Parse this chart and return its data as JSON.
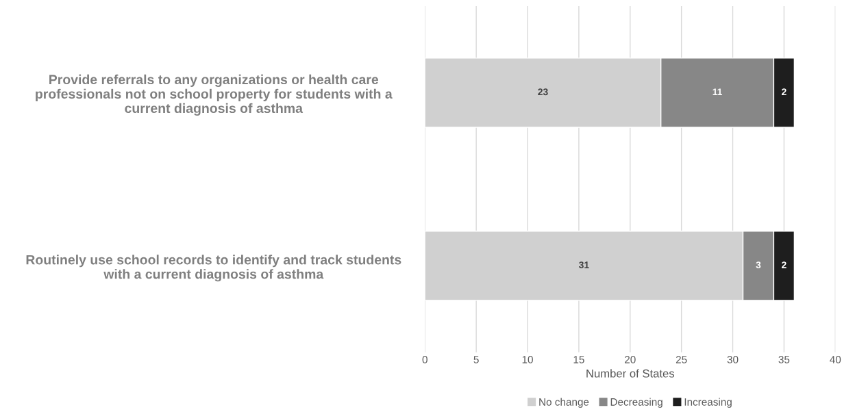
{
  "chart_data": {
    "type": "bar",
    "orientation": "horizontal",
    "stacked": true,
    "categories": [
      "Provide referrals to any organizations or health care\nprofessionals not on school property for students with a\ncurrent diagnosis of asthma",
      "Routinely use school records to identify and track students\nwith a current diagnosis of asthma"
    ],
    "series": [
      {
        "name": "No change",
        "color": "#d0d0d0",
        "values": [
          23,
          31
        ]
      },
      {
        "name": "Decreasing",
        "color": "#878787",
        "values": [
          11,
          3
        ]
      },
      {
        "name": "Increasing",
        "color": "#1e1e1e",
        "values": [
          2,
          2
        ]
      }
    ],
    "xlabel": "Number of States",
    "xlim": [
      0,
      40
    ],
    "xticks": [
      0,
      5,
      10,
      15,
      20,
      25,
      30,
      35,
      40
    ],
    "grid": "x",
    "legend": "bottom",
    "data_labels": true
  }
}
